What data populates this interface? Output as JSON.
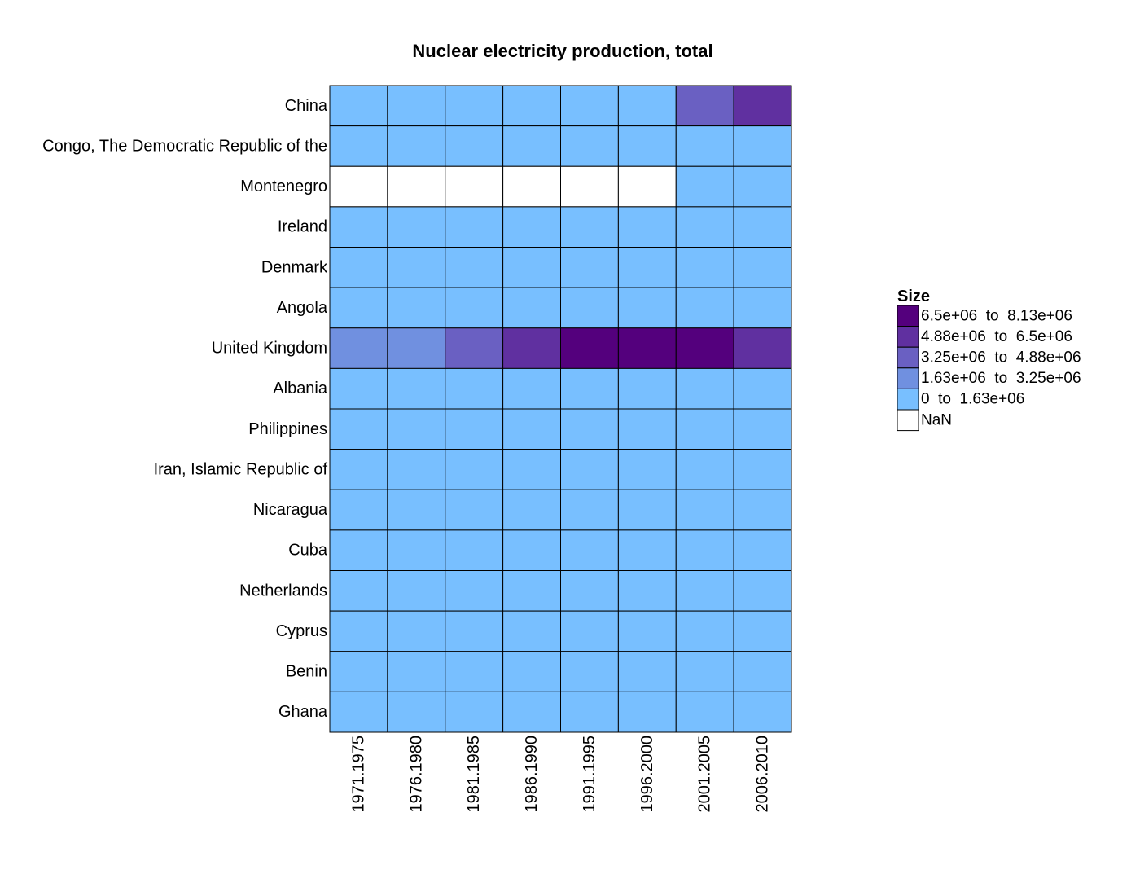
{
  "chart_data": {
    "type": "heatmap",
    "title": "Nuclear electricity production, total",
    "rows": [
      "China",
      "Congo, The Democratic Republic of the",
      "Montenegro",
      "Ireland",
      "Denmark",
      "Angola",
      "United Kingdom",
      "Albania",
      "Philippines",
      "Iran, Islamic Republic of",
      "Nicaragua",
      "Cuba",
      "Netherlands",
      "Cyprus",
      "Benin",
      "Ghana"
    ],
    "columns": [
      "1971.1975",
      "1976.1980",
      "1981.1985",
      "1986.1990",
      "1991.1995",
      "1996.2000",
      "2001.2005",
      "2006.2010"
    ],
    "cell_bins": [
      [
        0,
        0,
        0,
        0,
        0,
        0,
        2,
        3
      ],
      [
        0,
        0,
        0,
        0,
        0,
        0,
        0,
        0
      ],
      [
        null,
        null,
        null,
        null,
        null,
        null,
        0,
        0
      ],
      [
        0,
        0,
        0,
        0,
        0,
        0,
        0,
        0
      ],
      [
        0,
        0,
        0,
        0,
        0,
        0,
        0,
        0
      ],
      [
        0,
        0,
        0,
        0,
        0,
        0,
        0,
        0
      ],
      [
        1,
        1,
        2,
        3,
        4,
        4,
        4,
        3
      ],
      [
        0,
        0,
        0,
        0,
        0,
        0,
        0,
        0
      ],
      [
        0,
        0,
        0,
        0,
        0,
        0,
        0,
        0
      ],
      [
        0,
        0,
        0,
        0,
        0,
        0,
        0,
        0
      ],
      [
        0,
        0,
        0,
        0,
        0,
        0,
        0,
        0
      ],
      [
        0,
        0,
        0,
        0,
        0,
        0,
        0,
        0
      ],
      [
        0,
        0,
        0,
        0,
        0,
        0,
        0,
        0
      ],
      [
        0,
        0,
        0,
        0,
        0,
        0,
        0,
        0
      ],
      [
        0,
        0,
        0,
        0,
        0,
        0,
        0,
        0
      ],
      [
        0,
        0,
        0,
        0,
        0,
        0,
        0,
        0
      ]
    ],
    "legend": {
      "title": "Size",
      "placement": "right",
      "entries": [
        {
          "label": "6.5e+06  to  8.13e+06",
          "color": "#54007d",
          "bin": 4
        },
        {
          "label": "4.88e+06  to  6.5e+06",
          "color": "#6030a0",
          "bin": 3
        },
        {
          "label": "3.25e+06  to  4.88e+06",
          "color": "#6a60c2",
          "bin": 2
        },
        {
          "label": "1.63e+06  to  3.25e+06",
          "color": "#7090e0",
          "bin": 1
        },
        {
          "label": "0  to  1.63e+06",
          "color": "#78bfff",
          "bin": 0
        },
        {
          "label": "NaN",
          "color": "#ffffff",
          "bin": null
        }
      ]
    },
    "grid": true
  }
}
